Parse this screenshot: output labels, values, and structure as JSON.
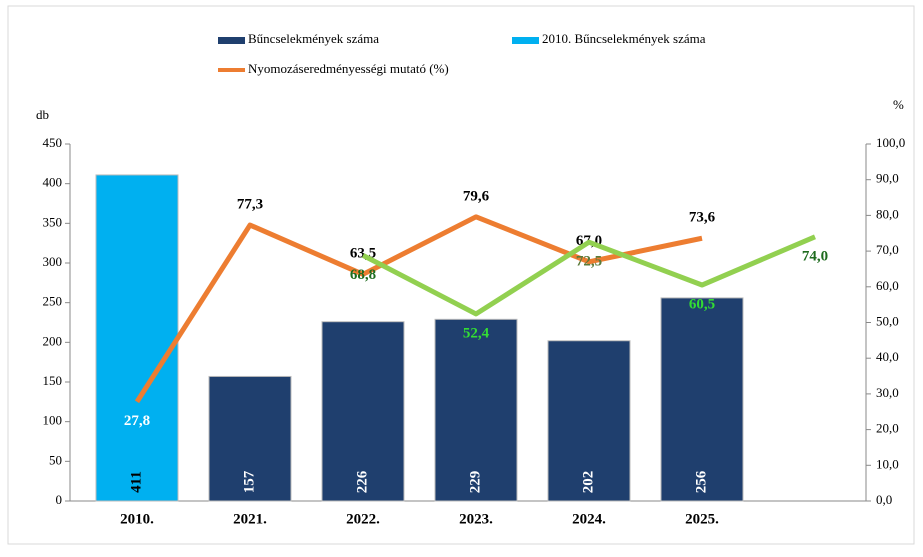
{
  "chart_data": {
    "type": "bar-line",
    "categories": [
      "2010.",
      "2021.",
      "2022.",
      "2023.",
      "2024.",
      "2025.",
      null
    ],
    "series": [
      {
        "name": "Bűncselekmények száma",
        "kind": "bar",
        "color": "#1f3f6e",
        "label_color": "#ffffff",
        "values": [
          null,
          157,
          226,
          229,
          202,
          256,
          null
        ]
      },
      {
        "name": "2010. Bűncselekmények száma",
        "kind": "bar",
        "color": "#00b0f0",
        "label_color": "#000000",
        "values": [
          411,
          null,
          null,
          null,
          null,
          null,
          null
        ]
      },
      {
        "name": "Nyomozáseredményességi mutató (%)",
        "kind": "line",
        "axis": "y2",
        "color": "#ed7d31",
        "label_colors": [
          "#ffffff",
          "#000000",
          "#000000",
          "#000000",
          "#000000",
          "#000000",
          null
        ],
        "values": [
          27.8,
          77.3,
          63.5,
          79.6,
          67.0,
          73.6,
          null
        ],
        "value_labels": [
          "27,8",
          "77,3",
          "63,5",
          "79,6",
          "67,0",
          "73,6",
          null
        ]
      },
      {
        "kind": "line",
        "axis": "y2",
        "color": "#92d050",
        "label_colors": [
          null,
          null,
          "#1e6b1e",
          "#33dd33",
          "#5a7a3a",
          "#33dd33",
          "#1e6b1e"
        ],
        "values": [
          null,
          null,
          68.8,
          52.4,
          72.5,
          60.5,
          74.0
        ],
        "value_labels": [
          null,
          null,
          "68,8",
          "52,4",
          "72,5",
          "60,5",
          "74,0"
        ]
      }
    ],
    "y_label": "db",
    "y2_label": "%",
    "ylim": [
      0,
      450
    ],
    "yticks": [
      0,
      50,
      100,
      150,
      200,
      250,
      300,
      350,
      400,
      450
    ],
    "y2lim": [
      0,
      100
    ],
    "y2ticks": [
      {
        "value": 0,
        "label": "0,0"
      },
      {
        "value": 10,
        "label": "10,0"
      },
      {
        "value": 20,
        "label": "20,0"
      },
      {
        "value": 30,
        "label": "30,0"
      },
      {
        "value": 40,
        "label": "40,0"
      },
      {
        "value": 50,
        "label": "50,0"
      },
      {
        "value": 60,
        "label": "60,0"
      },
      {
        "value": 70,
        "label": "70,0"
      },
      {
        "value": 80,
        "label": "80,0"
      },
      {
        "value": 90,
        "label": "90,0"
      },
      {
        "value": 100,
        "label": "100,0"
      }
    ]
  }
}
